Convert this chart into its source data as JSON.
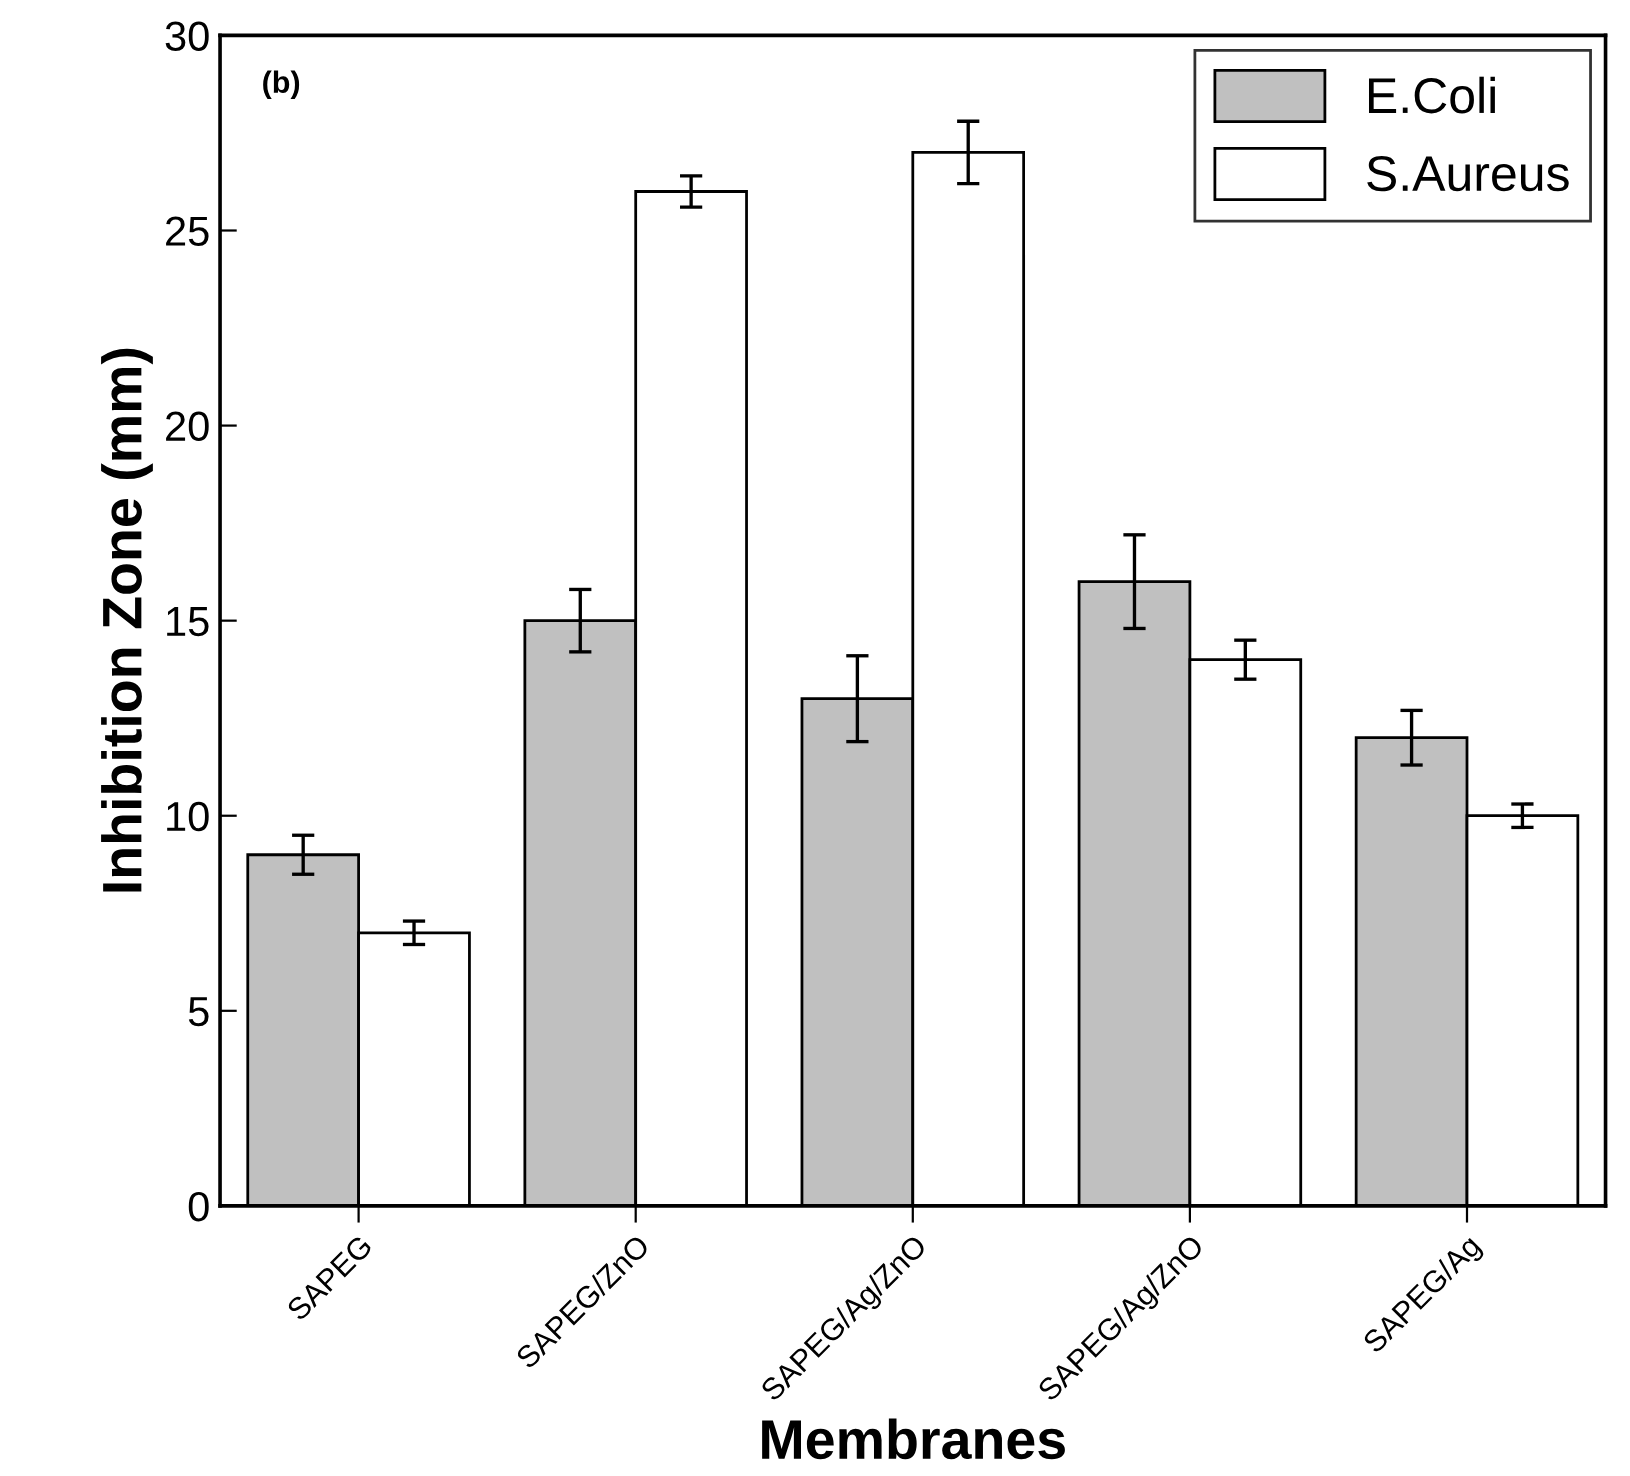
{
  "chart_data": {
    "type": "bar",
    "xlabel": "Membranes",
    "ylabel": "Inhibition Zone (mm)",
    "annotations": [
      "(b)"
    ],
    "categories": [
      "SAPEG",
      "SAPEG/ZnO",
      "SAPEG/Ag/ZnO",
      "SAPEG/Ag/ZnO",
      "SAPEG/Ag"
    ],
    "series": [
      {
        "name": "E.Coli",
        "color": "#c0c0c0",
        "values": [
          9,
          15,
          13,
          16,
          12
        ],
        "errors": [
          0.5,
          0.8,
          1.1,
          1.2,
          0.7
        ]
      },
      {
        "name": "S.Aureus",
        "color": "#ffffff",
        "values": [
          7,
          26,
          27,
          14,
          10
        ],
        "errors": [
          0.3,
          0.4,
          0.8,
          0.5,
          0.3
        ]
      }
    ],
    "ylim": [
      0,
      30
    ],
    "yticks": [
      0,
      5,
      10,
      15,
      20,
      25,
      30
    ],
    "grid": false,
    "legend": "top right"
  }
}
